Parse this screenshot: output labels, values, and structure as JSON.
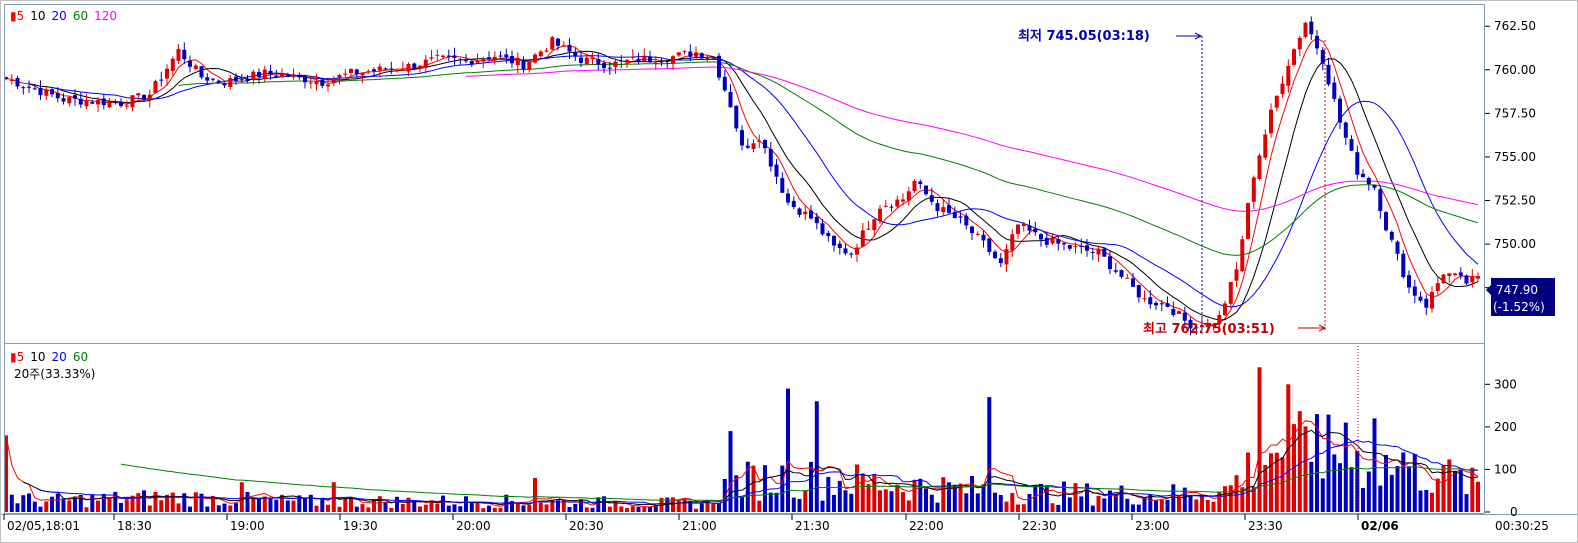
{
  "legend_price": [
    {
      "label": "5",
      "color": "#ff0000",
      "prefix": "▮"
    },
    {
      "label": "10",
      "color": "#000000"
    },
    {
      "label": "20",
      "color": "#0000ff"
    },
    {
      "label": "60",
      "color": "#008000"
    },
    {
      "label": "120",
      "color": "#ff00ff"
    }
  ],
  "legend_volume": [
    {
      "label": "5",
      "color": "#ff0000",
      "prefix": "▮"
    },
    {
      "label": "10",
      "color": "#000000"
    },
    {
      "label": "20",
      "color": "#0000ff"
    },
    {
      "label": "60",
      "color": "#008000"
    }
  ],
  "volume_subtitle": "20주(33.33%)",
  "annotations": {
    "low": "최저 745.05(03:18)",
    "high": "최고 762.75(03:51)"
  },
  "current_price": {
    "value": "747.90",
    "change": "(-1.52%)"
  },
  "clock": "00:30:25",
  "colors": {
    "up": "#e00000",
    "down": "#0000c0",
    "ma5": "#ff0000",
    "ma10": "#000000",
    "ma20": "#0000ff",
    "ma60": "#008000",
    "ma120": "#ff00ff",
    "frame": "#7f9db9"
  },
  "chart_data": [
    {
      "type": "candlestick",
      "title": "",
      "ylim": [
        744.5,
        763.2
      ],
      "y_ticks": [
        "762.50",
        "760.00",
        "757.50",
        "755.00",
        "752.50",
        "750.00",
        "747.50"
      ],
      "y_tick_values": [
        762.5,
        760.0,
        757.5,
        755.0,
        752.5,
        750.0,
        747.5
      ],
      "x_tick_labels": [
        "02/05,18:01",
        "18:30",
        "19:00",
        "19:30",
        "20:00",
        "20:30",
        "21:00",
        "21:30",
        "22:00",
        "22:30",
        "23:00",
        "23:30",
        "02/06"
      ],
      "close_path_points": [
        [
          0,
          759.5
        ],
        [
          10,
          758.3
        ],
        [
          20,
          758.1
        ],
        [
          25,
          758.6
        ],
        [
          30,
          761.1
        ],
        [
          34,
          759.6
        ],
        [
          38,
          759.3
        ],
        [
          45,
          759.8
        ],
        [
          50,
          759.6
        ],
        [
          55,
          759.3
        ],
        [
          60,
          759.8
        ],
        [
          70,
          760.2
        ],
        [
          75,
          760.6
        ],
        [
          80,
          760.5
        ],
        [
          85,
          760.8
        ],
        [
          90,
          760.3
        ],
        [
          95,
          761.6
        ],
        [
          100,
          760.6
        ],
        [
          105,
          760.3
        ],
        [
          110,
          760.6
        ],
        [
          115,
          760.7
        ],
        [
          120,
          761.0
        ],
        [
          123,
          760.7
        ],
        [
          126,
          758.0
        ],
        [
          128,
          755.5
        ],
        [
          131,
          756.2
        ],
        [
          136,
          752.4
        ],
        [
          140,
          751.5
        ],
        [
          144,
          749.8
        ],
        [
          147,
          749.5
        ],
        [
          152,
          752.2
        ],
        [
          156,
          752.6
        ],
        [
          158,
          753.6
        ],
        [
          162,
          752.1
        ],
        [
          166,
          751.3
        ],
        [
          170,
          750.0
        ],
        [
          173,
          748.8
        ],
        [
          176,
          751.1
        ],
        [
          180,
          750.3
        ],
        [
          185,
          749.8
        ],
        [
          190,
          749.5
        ],
        [
          195,
          747.8
        ],
        [
          198,
          746.8
        ],
        [
          202,
          746.5
        ],
        [
          205,
          745.6
        ],
        [
          208,
          745.05
        ],
        [
          211,
          745.8
        ],
        [
          214,
          748.5
        ],
        [
          217,
          754.0
        ],
        [
          220,
          757.5
        ],
        [
          223,
          760.4
        ],
        [
          226,
          762.75
        ],
        [
          229,
          760.6
        ],
        [
          232,
          757.0
        ],
        [
          235,
          754.2
        ],
        [
          238,
          753.3
        ],
        [
          240,
          751.0
        ],
        [
          244,
          747.5
        ],
        [
          247,
          746.5
        ],
        [
          250,
          748.4
        ],
        [
          254,
          747.8
        ],
        [
          256,
          748.0
        ]
      ],
      "candle_count": 257,
      "moving_averages": [
        "5",
        "10",
        "20",
        "60",
        "120"
      ],
      "low": {
        "value": 745.05,
        "time": "03:18"
      },
      "high": {
        "value": 762.75,
        "time": "03:51"
      },
      "last": {
        "value": 747.9,
        "change_pct": -1.52
      }
    },
    {
      "type": "bar",
      "title": "",
      "ylim": [
        0,
        390
      ],
      "y_ticks": [
        "300",
        "200",
        "100",
        "0"
      ],
      "y_tick_values": [
        300,
        200,
        100,
        0
      ],
      "x_tick_labels": [
        "02/05,18:01",
        "18:30",
        "19:00",
        "19:30",
        "20:00",
        "20:30",
        "21:00",
        "21:30",
        "22:00",
        "22:30",
        "23:00",
        "23:30",
        "02/06"
      ],
      "volume_profile_points": [
        [
          0,
          40
        ],
        [
          5,
          25
        ],
        [
          15,
          30
        ],
        [
          30,
          35
        ],
        [
          50,
          25
        ],
        [
          70,
          25
        ],
        [
          90,
          25
        ],
        [
          110,
          22
        ],
        [
          122,
          20
        ],
        [
          126,
          70
        ],
        [
          135,
          80
        ],
        [
          150,
          70
        ],
        [
          165,
          55
        ],
        [
          180,
          45
        ],
        [
          200,
          40
        ],
        [
          212,
          50
        ],
        [
          220,
          150
        ],
        [
          230,
          140
        ],
        [
          240,
          110
        ],
        [
          250,
          85
        ],
        [
          256,
          60
        ]
      ],
      "spikes": [
        [
          0,
          180
        ],
        [
          41,
          70
        ],
        [
          57,
          70
        ],
        [
          92,
          80
        ],
        [
          126,
          190
        ],
        [
          136,
          290
        ],
        [
          141,
          260
        ],
        [
          171,
          270
        ],
        [
          218,
          340
        ],
        [
          223,
          300
        ],
        [
          228,
          230
        ],
        [
          233,
          210
        ],
        [
          238,
          220
        ],
        [
          243,
          140
        ],
        [
          250,
          110
        ]
      ],
      "moving_averages": [
        "5",
        "10",
        "20",
        "60"
      ]
    }
  ]
}
